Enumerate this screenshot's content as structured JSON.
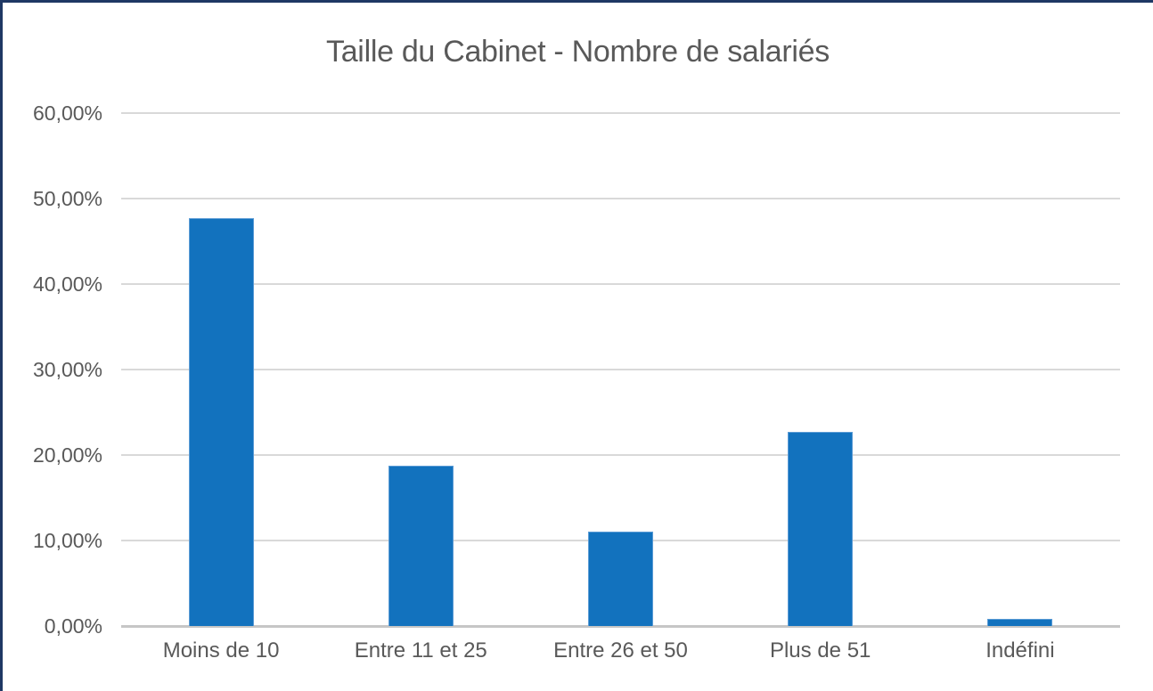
{
  "frame": {
    "background_color": "#ffffff",
    "border_color": "#1f3864",
    "border_sides_visible": [
      "top",
      "left"
    ]
  },
  "chart_data": {
    "type": "bar",
    "title": "Taille du Cabinet - Nombre de salariés",
    "categories": [
      "Moins de 10",
      "Entre 11 et 25",
      "Entre 26 et 50",
      "Plus de 51",
      "Indéfini"
    ],
    "values": [
      47.7,
      18.7,
      11.0,
      22.7,
      0.8
    ],
    "value_unit": "%",
    "xlabel": "",
    "ylabel": "",
    "ylim": [
      0,
      60
    ],
    "ytick_values": [
      0,
      10,
      20,
      30,
      40,
      50,
      60
    ],
    "ytick_labels": [
      "0,00%",
      "10,00%",
      "20,00%",
      "30,00%",
      "40,00%",
      "50,00%",
      "60,00%"
    ],
    "grid": true,
    "legend_position": "none",
    "bar_fill_color": "#1272be",
    "bar_border_color": "#5b9bd5",
    "gridline_color": "#d9d9d9",
    "axis_line_color": "#c6c6c6",
    "title_color": "#595959",
    "tick_label_color": "#595959"
  }
}
